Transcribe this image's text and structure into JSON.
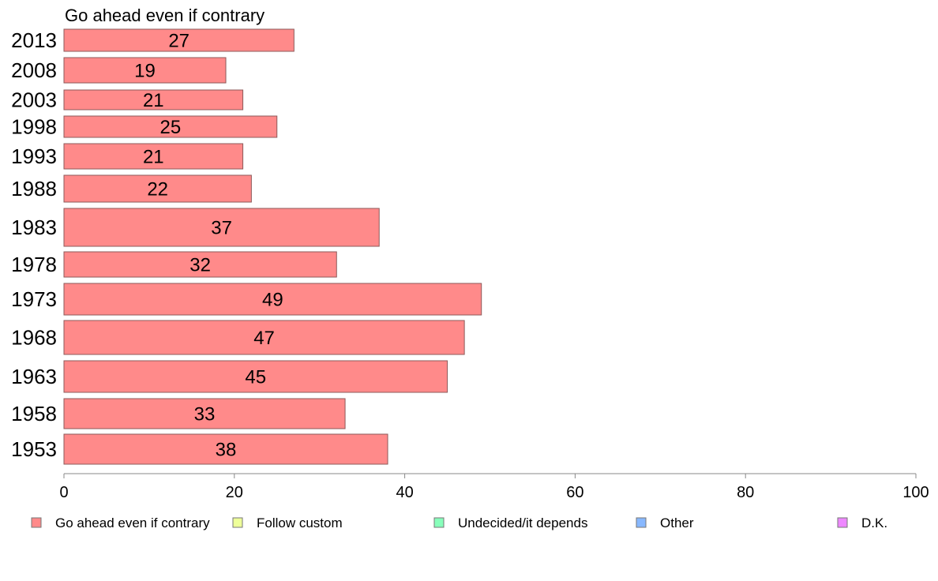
{
  "chart_data": {
    "type": "bar",
    "orientation": "horizontal",
    "series_title": "Go ahead even if contrary",
    "categories": [
      "2013",
      "2008",
      "2003",
      "1998",
      "1993",
      "1988",
      "1983",
      "1978",
      "1973",
      "1968",
      "1963",
      "1958",
      "1953"
    ],
    "series": [
      {
        "name": "Go ahead even if contrary",
        "values": [
          27,
          19,
          21,
          25,
          21,
          22,
          37,
          32,
          49,
          47,
          45,
          33,
          38
        ]
      }
    ],
    "xlim": [
      0,
      100
    ],
    "xticks": [
      0,
      20,
      40,
      60,
      80,
      100
    ],
    "grid": false,
    "legend_position": "bottom",
    "legend": [
      {
        "label": "Go ahead even if contrary",
        "color": "#ff8a8a"
      },
      {
        "label": "Follow custom",
        "color": "#eeff99"
      },
      {
        "label": "Undecided/it depends",
        "color": "#88ffbb"
      },
      {
        "label": "Other",
        "color": "#88b8ff"
      },
      {
        "label": "D.K.",
        "color": "#ee88ff"
      }
    ],
    "bar_color": "#ff8a8a"
  }
}
